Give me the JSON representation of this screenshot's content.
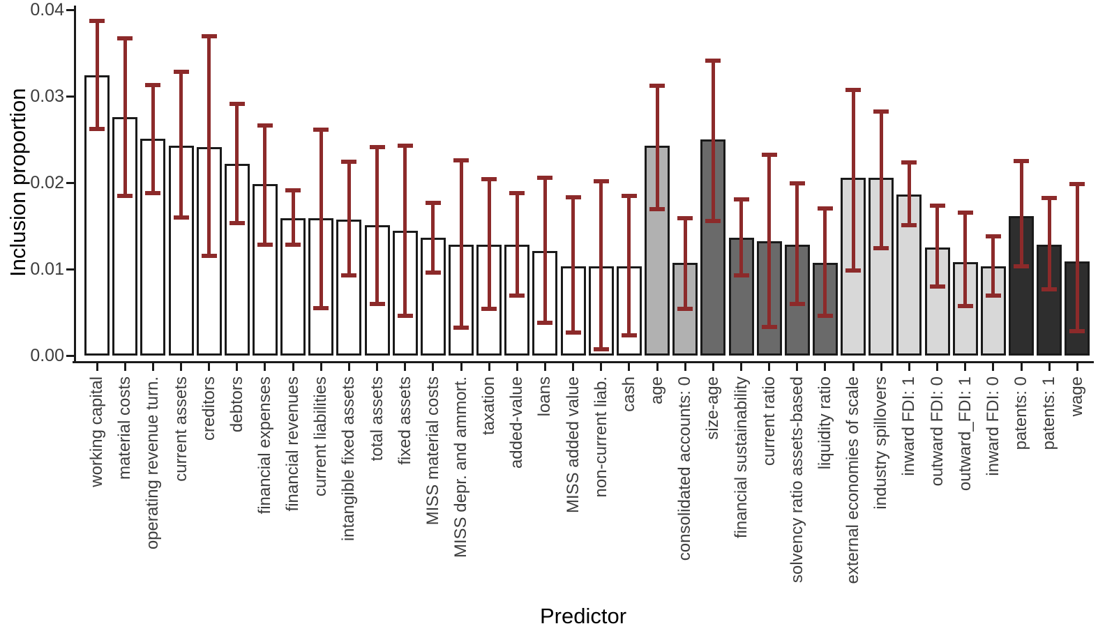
{
  "chart_data": {
    "type": "bar",
    "title": "",
    "xlabel": "Predictor",
    "ylabel": "Inclusion proportion",
    "ylim": [
      0,
      0.04
    ],
    "yticks": [
      0,
      0.01,
      0.02,
      0.03,
      0.04
    ],
    "ytick_labels": [
      "0.00",
      "0.01",
      "0.02",
      "0.03",
      "0.04"
    ],
    "grid": false,
    "legend": false,
    "error_bars": "vertical interval with flat caps",
    "colors": {
      "error_bar": "#8c2a2a",
      "bar_border": "#1a1a1a",
      "axis": "#1a1a1a",
      "tick_label": "#3d3d3d",
      "axis_title": "#000000",
      "background": "#ffffff"
    },
    "palette": {
      "white": "#ffffff",
      "medium_gray": "#b1b1b1",
      "dark_gray": "#6a6a6a",
      "light_gray": "#d8d8d8",
      "near_black": "#2e2e2e"
    },
    "bars": [
      {
        "label": "working capital",
        "value": 0.0324,
        "ci_low": 0.0262,
        "ci_high": 0.0387,
        "fill": "white"
      },
      {
        "label": "material costs",
        "value": 0.0276,
        "ci_low": 0.0185,
        "ci_high": 0.0367,
        "fill": "white"
      },
      {
        "label": "operating revenue turn.",
        "value": 0.0251,
        "ci_low": 0.0188,
        "ci_high": 0.0313,
        "fill": "white"
      },
      {
        "label": "current assets",
        "value": 0.0243,
        "ci_low": 0.016,
        "ci_high": 0.0328,
        "fill": "white"
      },
      {
        "label": "creditors",
        "value": 0.0241,
        "ci_low": 0.0115,
        "ci_high": 0.0369,
        "fill": "white"
      },
      {
        "label": "debtors",
        "value": 0.0222,
        "ci_low": 0.0153,
        "ci_high": 0.0291,
        "fill": "white"
      },
      {
        "label": "financial expenses",
        "value": 0.0198,
        "ci_low": 0.0128,
        "ci_high": 0.0266,
        "fill": "white"
      },
      {
        "label": "financial revenues",
        "value": 0.0159,
        "ci_low": 0.0128,
        "ci_high": 0.0191,
        "fill": "white"
      },
      {
        "label": "current liabilities",
        "value": 0.0159,
        "ci_low": 0.0055,
        "ci_high": 0.0261,
        "fill": "white"
      },
      {
        "label": "intangible fixed assets",
        "value": 0.0157,
        "ci_low": 0.0093,
        "ci_high": 0.0224,
        "fill": "white"
      },
      {
        "label": "total assets",
        "value": 0.0151,
        "ci_low": 0.006,
        "ci_high": 0.0241,
        "fill": "white"
      },
      {
        "label": "fixed assets",
        "value": 0.0144,
        "ci_low": 0.0046,
        "ci_high": 0.0243,
        "fill": "white"
      },
      {
        "label": "MISS material costs",
        "value": 0.0136,
        "ci_low": 0.0096,
        "ci_high": 0.0177,
        "fill": "white"
      },
      {
        "label": "MISS depr. and ammort.",
        "value": 0.0128,
        "ci_low": 0.0032,
        "ci_high": 0.0226,
        "fill": "white"
      },
      {
        "label": "taxation",
        "value": 0.0128,
        "ci_low": 0.0054,
        "ci_high": 0.0204,
        "fill": "white"
      },
      {
        "label": "added-value",
        "value": 0.0128,
        "ci_low": 0.0069,
        "ci_high": 0.0188,
        "fill": "white"
      },
      {
        "label": "loans",
        "value": 0.0121,
        "ci_low": 0.0038,
        "ci_high": 0.0206,
        "fill": "white"
      },
      {
        "label": "MISS added value",
        "value": 0.0103,
        "ci_low": 0.0027,
        "ci_high": 0.0183,
        "fill": "white"
      },
      {
        "label": "non-current liab.",
        "value": 0.0103,
        "ci_low": 0.0007,
        "ci_high": 0.0202,
        "fill": "white"
      },
      {
        "label": "cash",
        "value": 0.0103,
        "ci_low": 0.0023,
        "ci_high": 0.0185,
        "fill": "white"
      },
      {
        "label": "age",
        "value": 0.0243,
        "ci_low": 0.0169,
        "ci_high": 0.0312,
        "fill": "medium_gray"
      },
      {
        "label": "consolidated accounts: 0",
        "value": 0.0107,
        "ci_low": 0.0054,
        "ci_high": 0.0159,
        "fill": "medium_gray"
      },
      {
        "label": "size-age",
        "value": 0.025,
        "ci_low": 0.0156,
        "ci_high": 0.0341,
        "fill": "dark_gray"
      },
      {
        "label": "financial sustainability",
        "value": 0.0136,
        "ci_low": 0.0093,
        "ci_high": 0.0181,
        "fill": "dark_gray"
      },
      {
        "label": "current ratio",
        "value": 0.0132,
        "ci_low": 0.0033,
        "ci_high": 0.0232,
        "fill": "dark_gray"
      },
      {
        "label": "solvency ratio assets-based",
        "value": 0.0128,
        "ci_low": 0.006,
        "ci_high": 0.0199,
        "fill": "dark_gray"
      },
      {
        "label": "liquidity ratio",
        "value": 0.0107,
        "ci_low": 0.0046,
        "ci_high": 0.017,
        "fill": "dark_gray"
      },
      {
        "label": "external economies of scale",
        "value": 0.0206,
        "ci_low": 0.0098,
        "ci_high": 0.0307,
        "fill": "light_gray"
      },
      {
        "label": "industry spillovers",
        "value": 0.0206,
        "ci_low": 0.0124,
        "ci_high": 0.0282,
        "fill": "light_gray"
      },
      {
        "label": "inward FDI: 1",
        "value": 0.0186,
        "ci_low": 0.0151,
        "ci_high": 0.0223,
        "fill": "light_gray"
      },
      {
        "label": "outward FDI: 0",
        "value": 0.0125,
        "ci_low": 0.008,
        "ci_high": 0.0173,
        "fill": "light_gray"
      },
      {
        "label": "outward_FDI: 1",
        "value": 0.0108,
        "ci_low": 0.0057,
        "ci_high": 0.0165,
        "fill": "light_gray"
      },
      {
        "label": "inward FDI: 0",
        "value": 0.0103,
        "ci_low": 0.0069,
        "ci_high": 0.0138,
        "fill": "light_gray"
      },
      {
        "label": "patents: 0",
        "value": 0.0161,
        "ci_low": 0.0103,
        "ci_high": 0.0225,
        "fill": "near_black"
      },
      {
        "label": "patents: 1",
        "value": 0.0128,
        "ci_low": 0.0077,
        "ci_high": 0.0182,
        "fill": "near_black"
      },
      {
        "label": "wage",
        "value": 0.0109,
        "ci_low": 0.0028,
        "ci_high": 0.0198,
        "fill": "near_black"
      }
    ]
  }
}
